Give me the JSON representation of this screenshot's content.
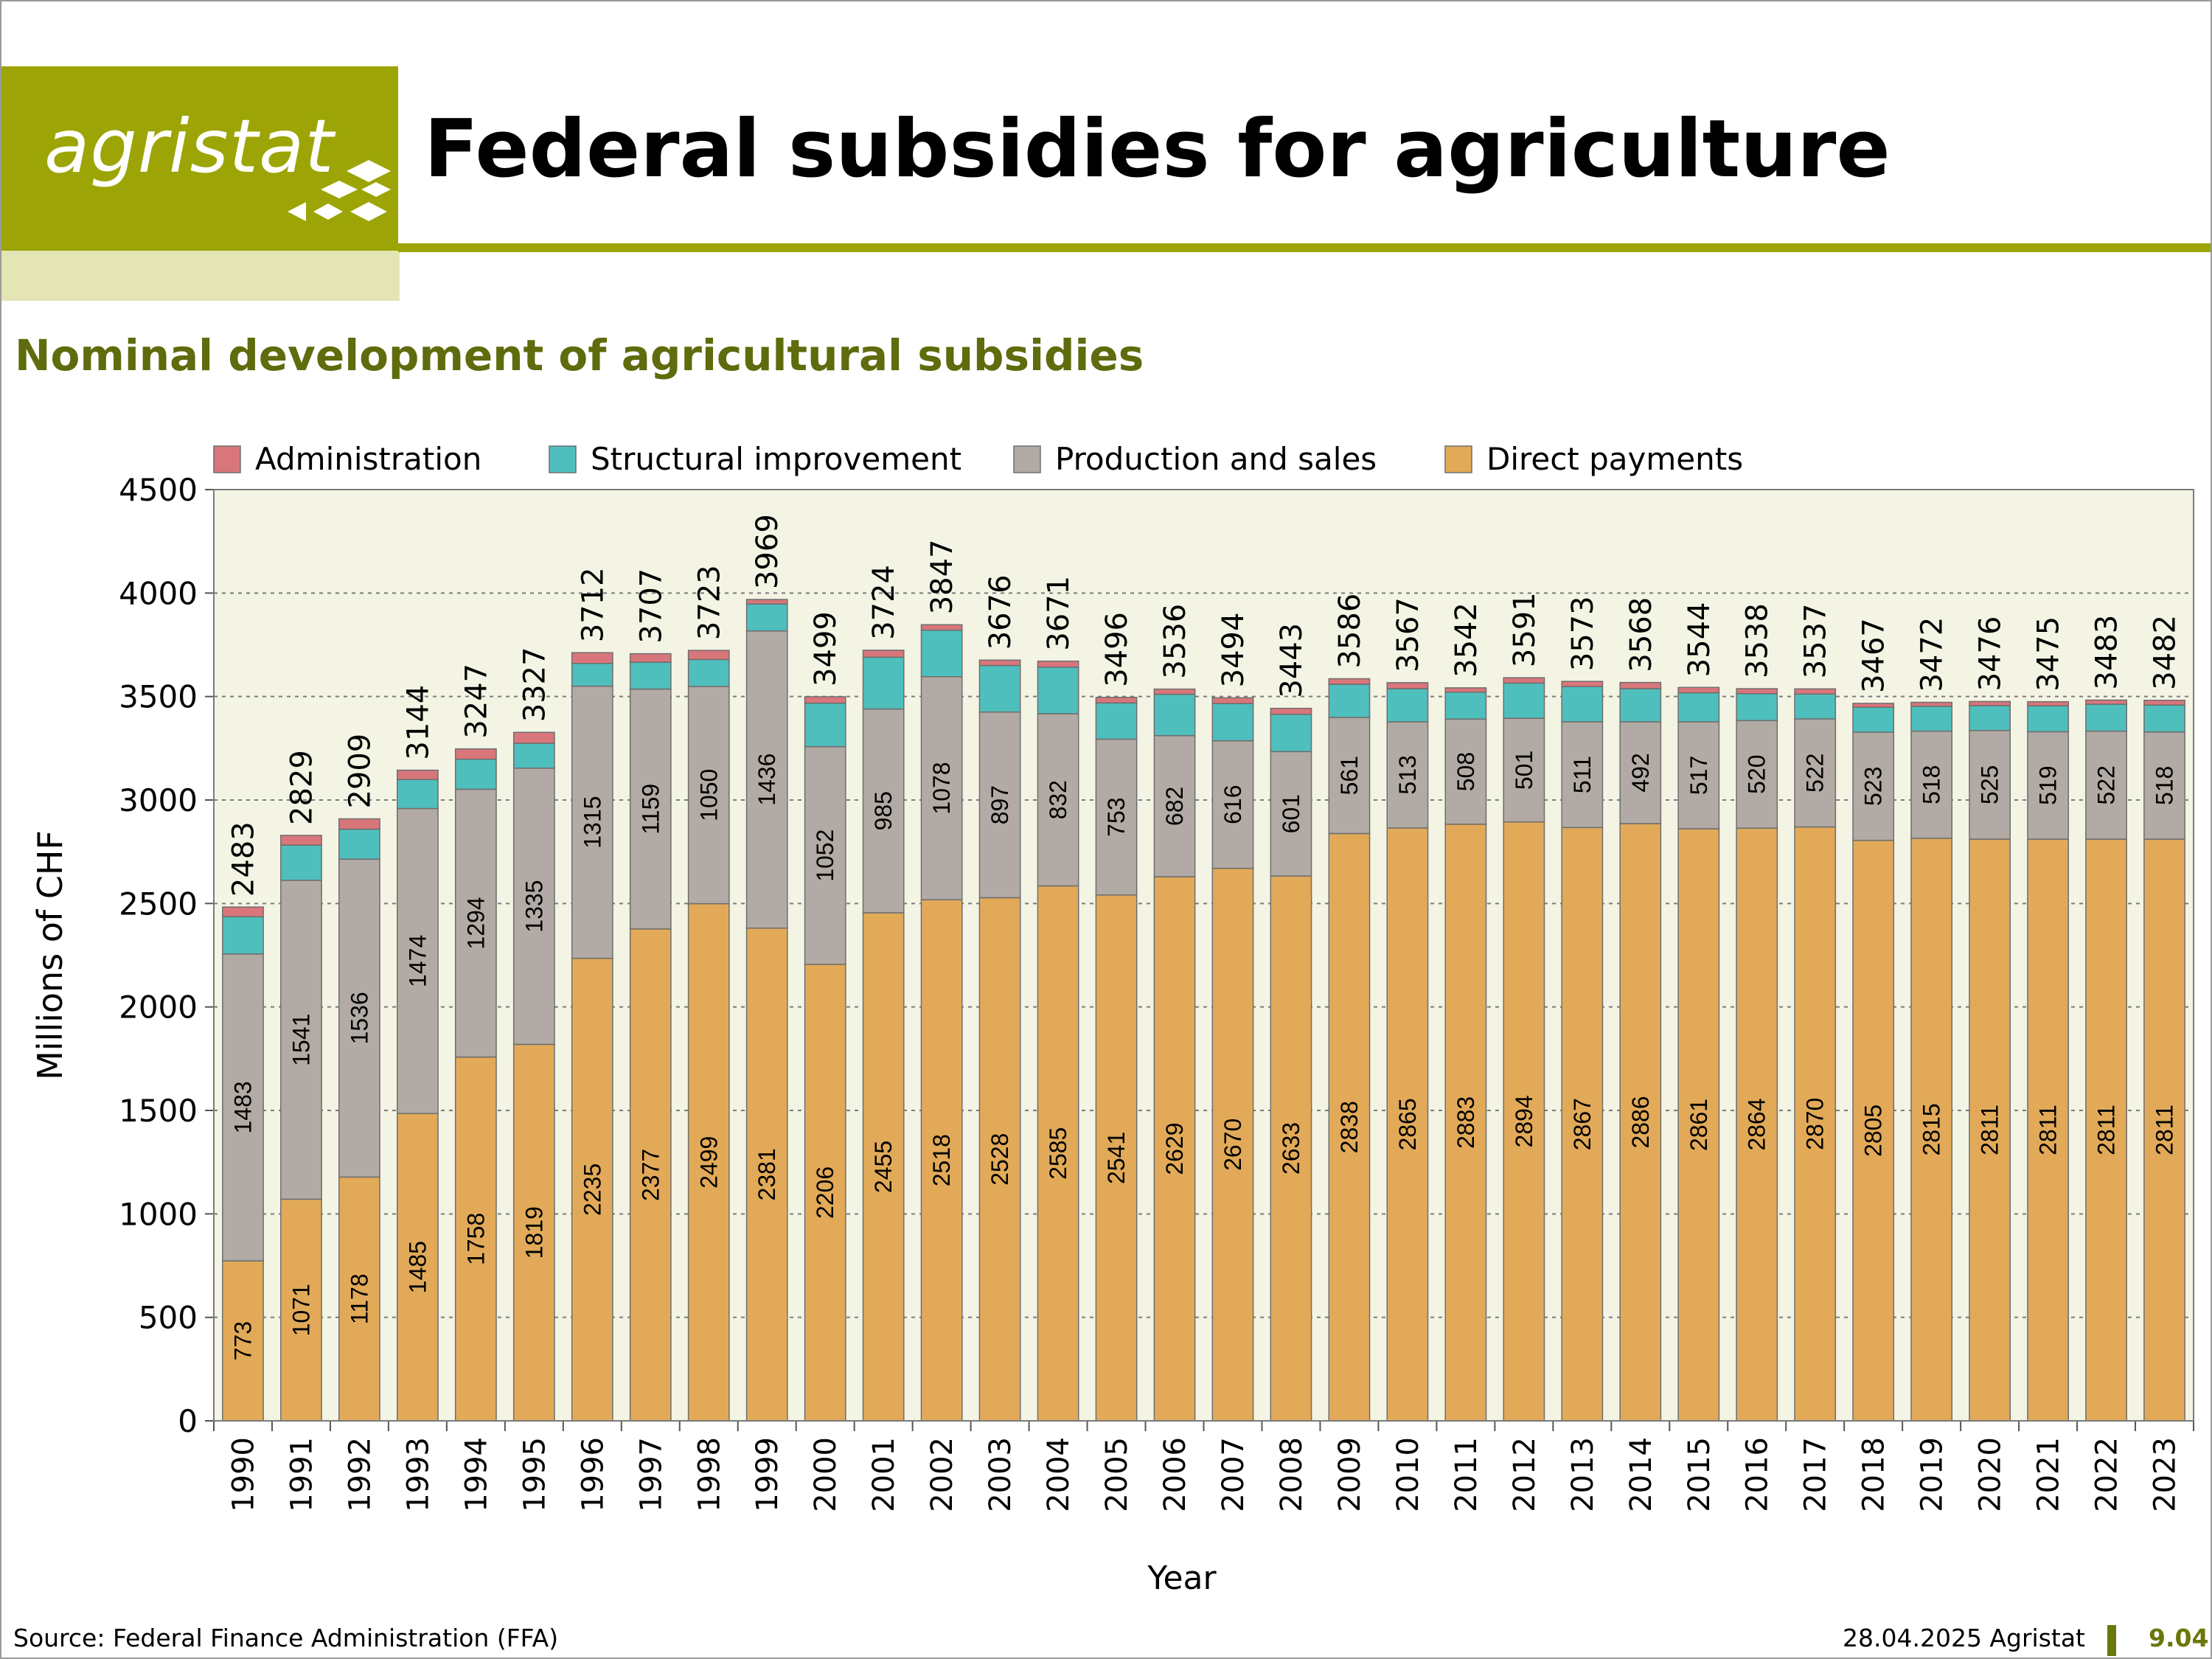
{
  "header": {
    "logo_text": "agristat",
    "title": "Federal subsidies for agriculture"
  },
  "subtitle": "Nominal development of agricultural subsidies",
  "footer": {
    "source": "Source: Federal Finance Administration (FFA)",
    "date": "28.04.2025 Agristat",
    "page": "9.04"
  },
  "colors": {
    "brand": "#9ca505",
    "subtitle": "#5f6b0c",
    "plot_background": "#f4f4e4",
    "administration": "#d9767b",
    "structural_improvement": "#4fbfbd",
    "production_and_sales": "#b2aaa4",
    "direct_payments": "#e2aa58"
  },
  "chart_data": {
    "type": "bar",
    "stacked": true,
    "xlabel": "Year",
    "ylabel": "Millions of CHF",
    "ylim": [
      0,
      4500
    ],
    "yticks": [
      0,
      500,
      1000,
      1500,
      2000,
      2500,
      3000,
      3500,
      4000,
      4500
    ],
    "grid": "horizontal dotted",
    "legend_position": "top",
    "categories": [
      "1990",
      "1991",
      "1992",
      "1993",
      "1994",
      "1995",
      "1996",
      "1997",
      "1998",
      "1999",
      "2000",
      "2001",
      "2002",
      "2003",
      "2004",
      "2005",
      "2006",
      "2007",
      "2008",
      "2009",
      "2010",
      "2011",
      "2012",
      "2013",
      "2014",
      "2015",
      "2016",
      "2017",
      "2018",
      "2019",
      "2020",
      "2021",
      "2022",
      "2023"
    ],
    "series": [
      {
        "name": "Direct payments",
        "color": "#e2aa58",
        "values": [
          773,
          1071,
          1178,
          1485,
          1758,
          1819,
          2235,
          2377,
          2499,
          2381,
          2206,
          2455,
          2518,
          2528,
          2585,
          2541,
          2629,
          2670,
          2633,
          2838,
          2865,
          2883,
          2894,
          2867,
          2886,
          2861,
          2864,
          2870,
          2805,
          2815,
          2811,
          2811,
          2811,
          2811
        ]
      },
      {
        "name": "Production and sales",
        "color": "#b2aaa4",
        "values": [
          1483,
          1541,
          1536,
          1474,
          1294,
          1335,
          1315,
          1159,
          1050,
          1436,
          1052,
          985,
          1078,
          897,
          832,
          753,
          682,
          616,
          601,
          561,
          513,
          508,
          501,
          511,
          492,
          517,
          520,
          522,
          523,
          518,
          525,
          519,
          522,
          518
        ]
      },
      {
        "name": "Structural improvement",
        "color": "#4fbfbd",
        "values": [
          180,
          170,
          145,
          140,
          145,
          120,
          110,
          130,
          130,
          130,
          210,
          250,
          225,
          225,
          225,
          175,
          200,
          180,
          180,
          160,
          160,
          130,
          170,
          170,
          160,
          140,
          130,
          120,
          120,
          120,
          120,
          125,
          130,
          130
        ]
      },
      {
        "name": "Administration",
        "color": "#d9767b",
        "values": [
          47,
          47,
          50,
          45,
          50,
          53,
          52,
          41,
          44,
          22,
          31,
          34,
          26,
          26,
          29,
          27,
          25,
          28,
          29,
          27,
          29,
          21,
          26,
          25,
          30,
          26,
          24,
          25,
          19,
          19,
          20,
          20,
          20,
          23
        ]
      }
    ],
    "totals": [
      2483,
      2829,
      2909,
      3144,
      3247,
      3327,
      3712,
      3707,
      3723,
      3969,
      3499,
      3724,
      3847,
      3676,
      3671,
      3496,
      3536,
      3494,
      3443,
      3586,
      3567,
      3542,
      3591,
      3573,
      3568,
      3544,
      3538,
      3537,
      3467,
      3472,
      3476,
      3475,
      3483,
      3482
    ],
    "labeled_series": [
      "Direct payments",
      "Production and sales"
    ]
  }
}
